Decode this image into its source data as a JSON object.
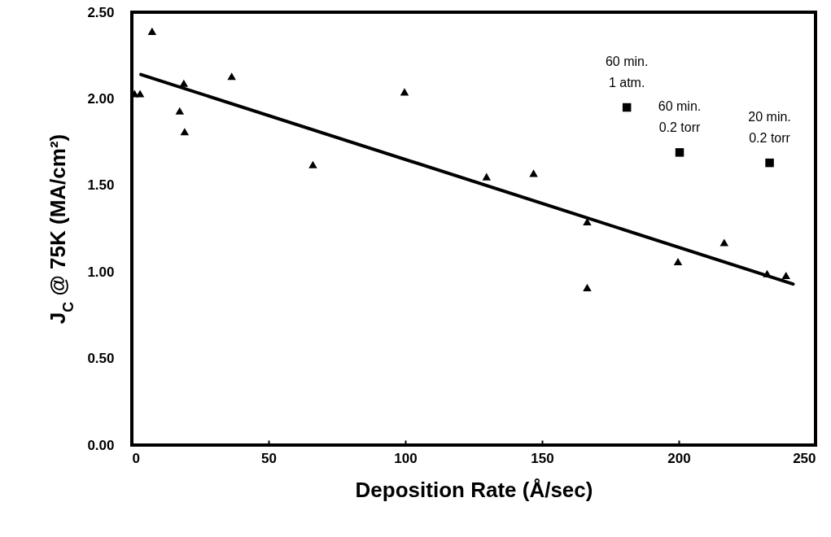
{
  "chart_data": {
    "type": "scatter",
    "xlabel": "Deposition Rate (Å/sec)",
    "ylabel": "J$_{C}$ @ 75K (MA/cm²)",
    "xlim": [
      0,
      250
    ],
    "xticks": [
      0,
      50,
      100,
      150,
      200,
      250
    ],
    "ylim": [
      0,
      2.5
    ],
    "yticks": [
      {
        "value": 0,
        "label": "0.00"
      },
      {
        "value": 0.5,
        "label": "0.50"
      },
      {
        "value": 1,
        "label": "1.00"
      },
      {
        "value": 1.5,
        "label": "1.50"
      },
      {
        "value": 2,
        "label": "2.00"
      },
      {
        "value": 2.5,
        "label": "2.50"
      }
    ],
    "grid": false,
    "series": [
      {
        "marker": "triangle",
        "color": "#000000",
        "x": [
          1,
          3,
          7.4,
          19,
          17.5,
          19.3,
          36.5,
          66.2,
          99.7,
          129.7,
          146.9,
          166.5,
          166.5,
          199.7,
          216.6,
          232.3,
          239.2
        ],
        "values": [
          2.03,
          2.03,
          2.39,
          2.09,
          1.93,
          1.81,
          2.13,
          1.62,
          2.04,
          1.55,
          1.57,
          1.29,
          0.91,
          1.06,
          1.17,
          0.99,
          0.98
        ]
      },
      {
        "marker": "square",
        "color": "#000000",
        "x": [
          181,
          200.3,
          233.2
        ],
        "values": [
          1.95,
          1.69,
          1.63
        ]
      },
      {
        "type": "line",
        "color": "#000000",
        "x": [
          3.3,
          241.8
        ],
        "values": [
          2.14,
          0.93
        ]
      }
    ],
    "annotations": [
      {
        "text": "60 min.\n1 atm.",
        "x": 181,
        "y": 1.95
      },
      {
        "text": "60 min.\n0.2 torr",
        "x": 200.3,
        "y": 1.69
      },
      {
        "text": "20 min.\n0.2 torr",
        "x": 233.2,
        "y": 1.63
      }
    ]
  }
}
